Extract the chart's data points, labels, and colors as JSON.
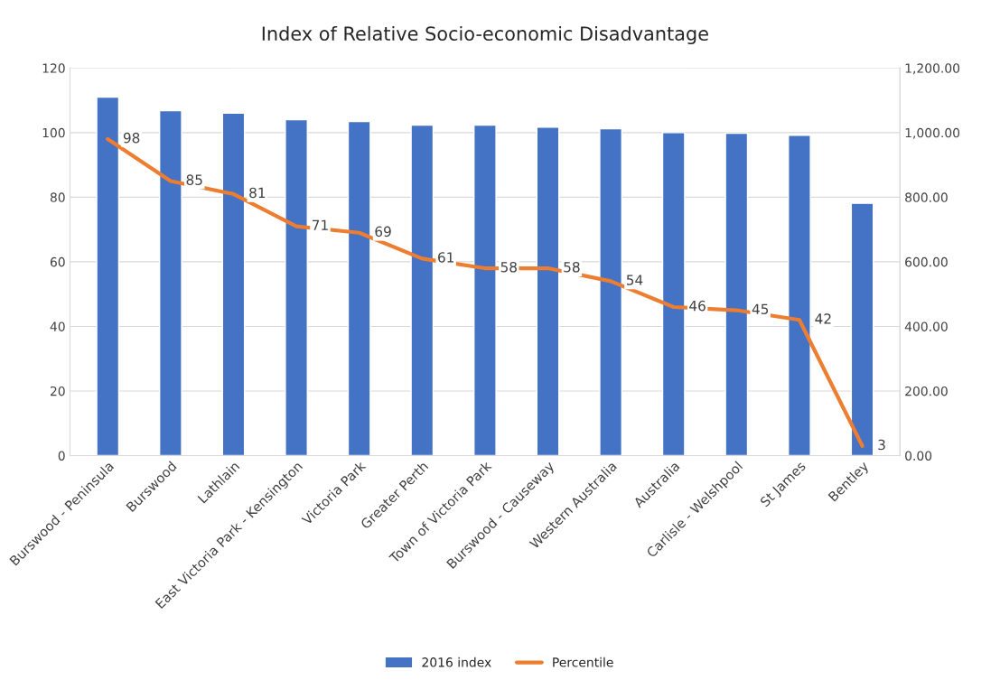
{
  "chart_data": {
    "type": "bar",
    "title": "Index of Relative Socio-economic Disadvantage",
    "categories": [
      "Burswood - Peninsula",
      "Burswood",
      "Lathlain",
      "East Victoria Park - Kensington",
      "Victoria Park",
      "Greater Perth",
      "Town of Victoria Park",
      "Burswood - Causeway",
      "Western Australia",
      "Australia",
      "Carlisle - Welshpool",
      "St James",
      "Bentley"
    ],
    "series": [
      {
        "name": "2016 index",
        "color": "#4472c4",
        "values": [
          111.0,
          106.8,
          106.0,
          104.0,
          103.4,
          102.3,
          102.3,
          101.7,
          101.2,
          100.0,
          99.8,
          99.2,
          78.1
        ]
      },
      {
        "name": "Percentile",
        "type": "line",
        "color": "#ed7d31",
        "values": [
          98,
          85,
          81,
          71,
          69,
          61,
          58,
          58,
          54,
          46,
          45,
          42,
          3
        ],
        "value_labels": [
          "98",
          "85",
          "81",
          "71",
          "69",
          "61",
          "58",
          "58",
          "54",
          "46",
          "45",
          "42",
          "3"
        ]
      }
    ],
    "ylim": [
      0,
      120
    ],
    "yticks": [
      0,
      20,
      40,
      60,
      80,
      100,
      120
    ],
    "y2lim": [
      0,
      1200
    ],
    "y2ticks": [
      {
        "value": 0,
        "label": "0.00"
      },
      {
        "value": 200,
        "label": "200.00"
      },
      {
        "value": 400,
        "label": "400.00"
      },
      {
        "value": 600,
        "label": "600.00"
      },
      {
        "value": 800,
        "label": "800.00"
      },
      {
        "value": 1000,
        "label": "1,000.00"
      },
      {
        "value": 1200,
        "label": "1,200.00"
      }
    ],
    "grid": "y",
    "legend": "bottom",
    "marker": "none",
    "line_style": "solid"
  }
}
